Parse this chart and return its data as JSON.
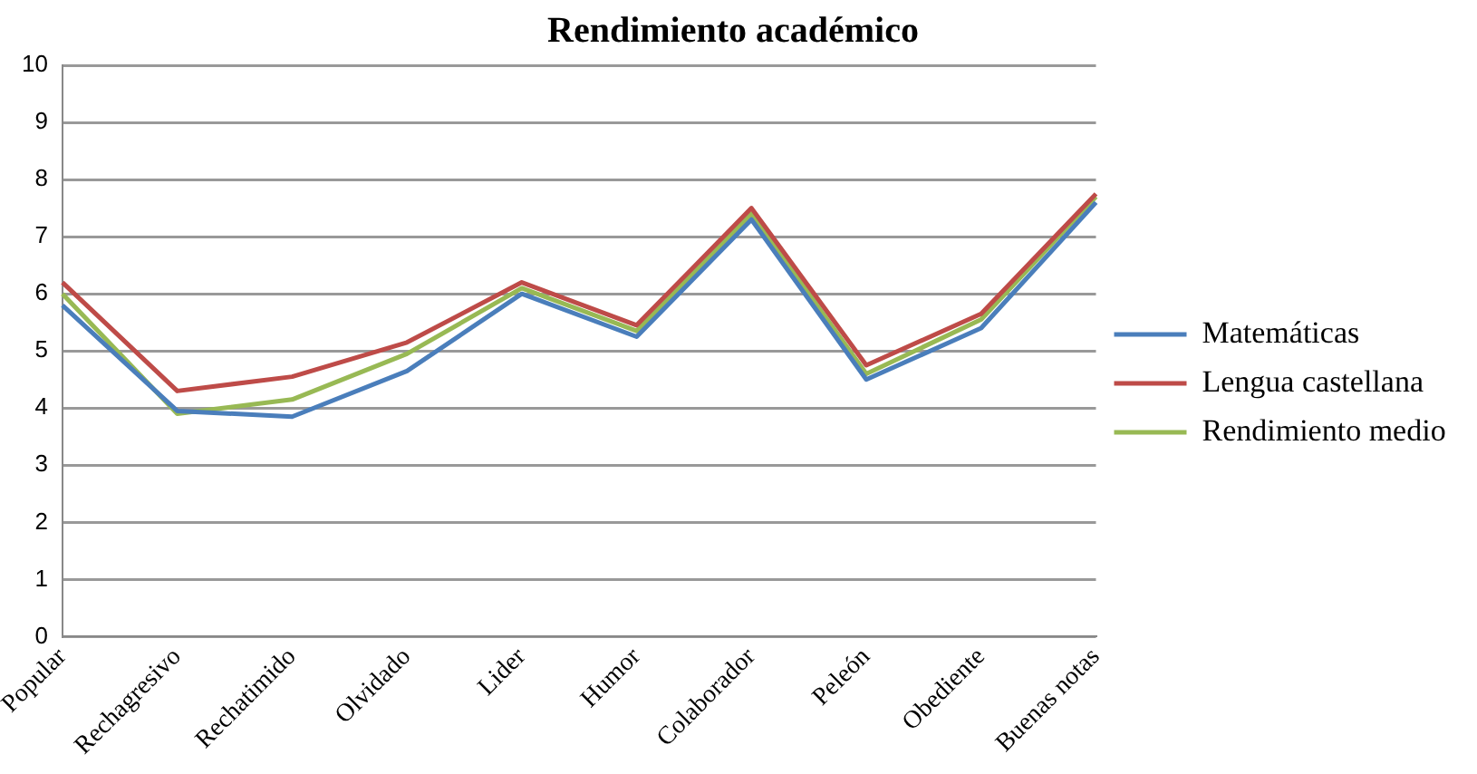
{
  "chart_data": {
    "type": "line",
    "title": "Rendimiento académico",
    "categories": [
      "Popular",
      "Rechagresivo",
      "Rechatimido",
      "Olvidado",
      "Lider",
      "Humor",
      "Colaborador",
      "Peleón",
      "Obediente",
      "Buenas notas"
    ],
    "series": [
      {
        "name": "Matemáticas",
        "color": "#4a7ebb",
        "values": [
          5.8,
          3.95,
          3.85,
          4.65,
          6.0,
          5.25,
          7.3,
          4.5,
          5.4,
          7.6
        ]
      },
      {
        "name": "Lengua castellana",
        "color": "#be4b48",
        "values": [
          6.2,
          4.3,
          4.55,
          5.15,
          6.2,
          5.45,
          7.5,
          4.75,
          5.65,
          7.75
        ]
      },
      {
        "name": "Rendimiento medio",
        "color": "#98b954",
        "values": [
          6.0,
          3.9,
          4.15,
          4.95,
          6.1,
          5.35,
          7.4,
          4.6,
          5.55,
          7.7
        ]
      }
    ],
    "ylim": [
      0,
      10
    ],
    "yticks": [
      0,
      1,
      2,
      3,
      4,
      5,
      6,
      7,
      8,
      9,
      10
    ],
    "grid": "y",
    "legend": "right",
    "marker": "none",
    "line_style": "solid"
  }
}
